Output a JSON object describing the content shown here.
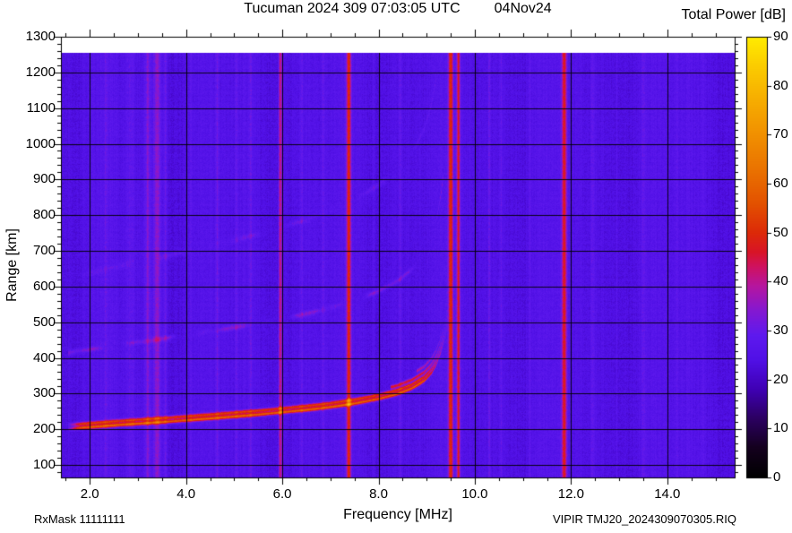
{
  "header": {
    "title": "Tucuman 2024 309 07:03:05 UTC",
    "date": "04Nov24"
  },
  "colorbar": {
    "title": "Total Power [dB]",
    "min": 0,
    "max": 90,
    "ticks": [
      0,
      10,
      20,
      30,
      40,
      50,
      60,
      70,
      80,
      90
    ]
  },
  "axes": {
    "x": {
      "label": "Frequency [MHz]",
      "tick_values": [
        2,
        4,
        6,
        8,
        10,
        12,
        14
      ],
      "tick_labels": [
        "2.0",
        "4.0",
        "6.0",
        "8.0",
        "10.0",
        "12.0",
        "14.0"
      ],
      "minor_step": 0.5,
      "range": [
        1.4,
        15.4
      ]
    },
    "y": {
      "label": "Range [km]",
      "tick_values": [
        100,
        200,
        300,
        400,
        500,
        600,
        700,
        800,
        900,
        1000,
        1100,
        1200,
        1300
      ],
      "tick_labels": [
        "100",
        "200",
        "300",
        "400",
        "500",
        "600",
        "700",
        "800",
        "900",
        "1000",
        "1100",
        "1200",
        "1300"
      ],
      "minor_step": 20,
      "range": [
        65,
        1300
      ]
    }
  },
  "footer": {
    "left": "RxMask 11111111",
    "right": "VIPIR  TMJ20_2024309070305.RIQ"
  },
  "chart_data": {
    "type": "heatmap",
    "title": "Tucuman 2024 309 07:03:05 UTC 04Nov24",
    "xlabel": "Frequency [MHz]",
    "ylabel": "Range [km]",
    "zlabel": "Total Power [dB]",
    "xlim": [
      1.4,
      15.4
    ],
    "ylim": [
      65,
      1300
    ],
    "zlim": [
      0,
      90
    ],
    "data_top_km": 1255,
    "background_db": 25,
    "noise_db": 2.1,
    "grid": true,
    "colormap_stops": [
      [
        0,
        "#000000"
      ],
      [
        6,
        "#14001e"
      ],
      [
        12,
        "#2b0060"
      ],
      [
        18,
        "#3f00b4"
      ],
      [
        24,
        "#5010e6"
      ],
      [
        29,
        "#5e19ee"
      ],
      [
        34,
        "#8418d2"
      ],
      [
        39,
        "#b515a0"
      ],
      [
        43,
        "#cf1260"
      ],
      [
        46,
        "#d81427"
      ],
      [
        50,
        "#dc2a08"
      ],
      [
        56,
        "#e35200"
      ],
      [
        63,
        "#ea7300"
      ],
      [
        70,
        "#f19000"
      ],
      [
        78,
        "#f7b100"
      ],
      [
        84,
        "#fbcc00"
      ],
      [
        90,
        "#ffec00"
      ]
    ],
    "rfi_lines": [
      [
        2.33,
        0.03,
        3
      ],
      [
        2.85,
        0.07,
        4
      ],
      [
        3.2,
        0.05,
        8
      ],
      [
        3.4,
        0.07,
        11
      ],
      [
        3.57,
        0.04,
        6
      ],
      [
        4.1,
        0.03,
        3
      ],
      [
        4.65,
        0.03,
        5
      ],
      [
        5.05,
        0.03,
        3
      ],
      [
        5.35,
        0.03,
        4
      ],
      [
        5.96,
        0.035,
        19
      ],
      [
        6.4,
        0.03,
        4
      ],
      [
        6.85,
        0.03,
        3
      ],
      [
        7.38,
        0.045,
        23
      ],
      [
        7.9,
        0.03,
        4
      ],
      [
        8.45,
        0.03,
        5
      ],
      [
        9.5,
        0.045,
        24
      ],
      [
        9.66,
        0.035,
        21
      ],
      [
        10.3,
        0.03,
        5
      ],
      [
        10.55,
        0.03,
        4
      ],
      [
        11.15,
        0.03,
        4
      ],
      [
        11.86,
        0.05,
        22
      ],
      [
        12.45,
        0.03,
        4
      ],
      [
        12.95,
        0.03,
        3
      ],
      [
        13.5,
        0.03,
        4
      ],
      [
        14.2,
        0.03,
        3
      ],
      [
        14.75,
        0.03,
        3
      ]
    ],
    "echo_traces": {
      "main": {
        "points": [
          [
            1.55,
            201
          ],
          [
            2.5,
            211
          ],
          [
            3.5,
            220
          ],
          [
            4.5,
            230
          ],
          [
            5.5,
            241
          ],
          [
            6.5,
            254
          ],
          [
            7.0,
            262
          ],
          [
            7.5,
            272
          ],
          [
            8.0,
            285
          ],
          [
            8.4,
            299
          ],
          [
            8.7,
            315
          ],
          [
            8.95,
            336
          ],
          [
            9.1,
            358
          ],
          [
            9.2,
            382
          ],
          [
            9.3,
            418
          ],
          [
            9.38,
            458
          ],
          [
            9.44,
            495
          ]
        ],
        "amp_db": 34,
        "sigma_km": 5
      },
      "second_hop": {
        "scale": 2.06,
        "amp_db": 9,
        "sigma_km": 7,
        "fmax": 9.35
      },
      "third_hop": {
        "scale": 3.1,
        "amp_db": 5,
        "sigma_km": 8,
        "fmax": 9.2
      }
    }
  }
}
